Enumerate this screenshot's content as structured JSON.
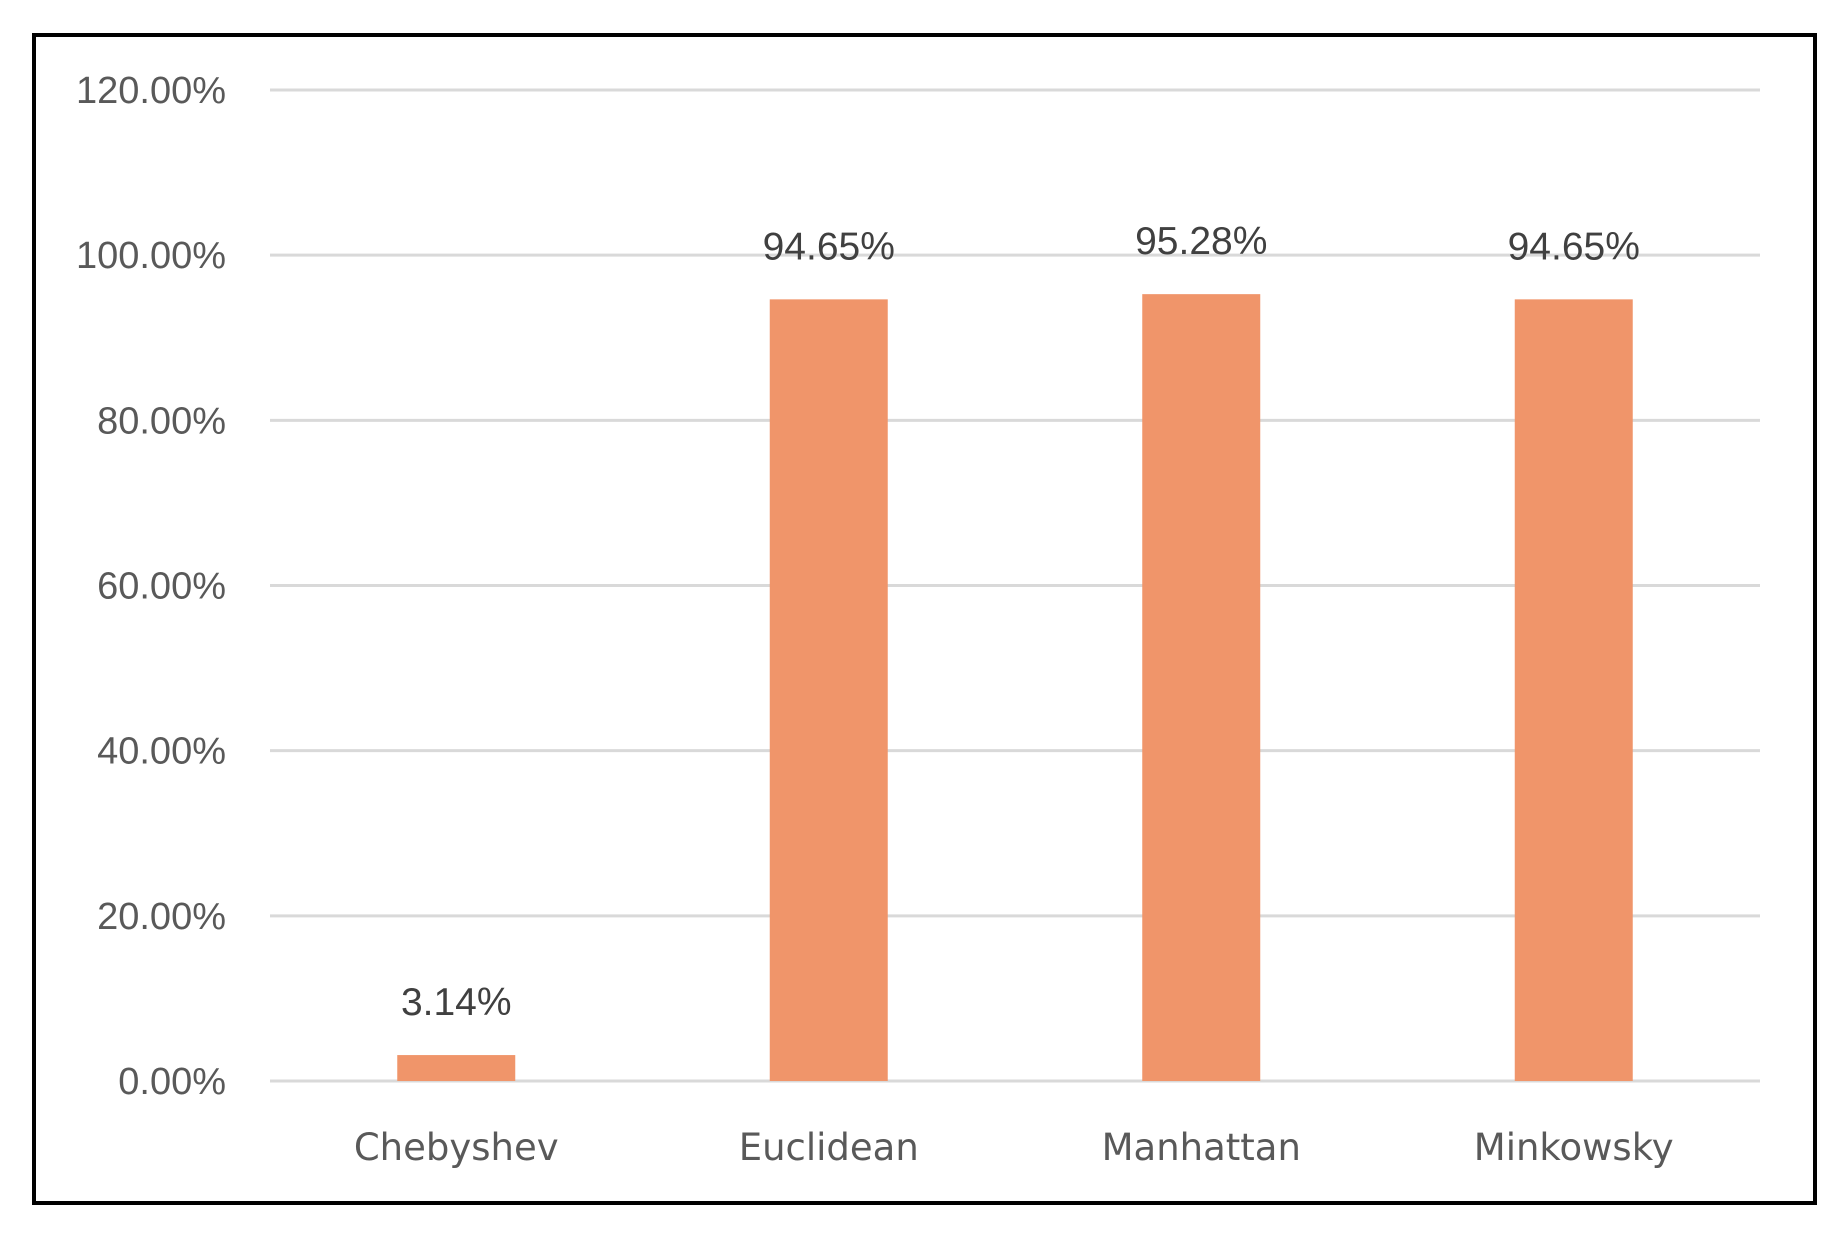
{
  "chart_data": {
    "type": "bar",
    "categories": [
      "Chebyshev",
      "Euclidean",
      "Manhattan",
      "Minkowsky"
    ],
    "values": [
      3.14,
      94.65,
      95.28,
      94.65
    ],
    "data_labels": [
      "3.14%",
      "94.65%",
      "95.28%",
      "94.65%"
    ],
    "title": "",
    "xlabel": "",
    "ylabel": "",
    "ylim": [
      0,
      120
    ],
    "y_ticks": [
      0,
      20,
      40,
      60,
      80,
      100,
      120
    ],
    "y_tick_labels": [
      "0.00%",
      "20.00%",
      "40.00%",
      "60.00%",
      "80.00%",
      "100.00%",
      "120.00%"
    ],
    "grid": true,
    "legend": "none",
    "bar_color": "#f0956a",
    "gridline_color": "#d9d9d9",
    "border_color": "#000000"
  }
}
